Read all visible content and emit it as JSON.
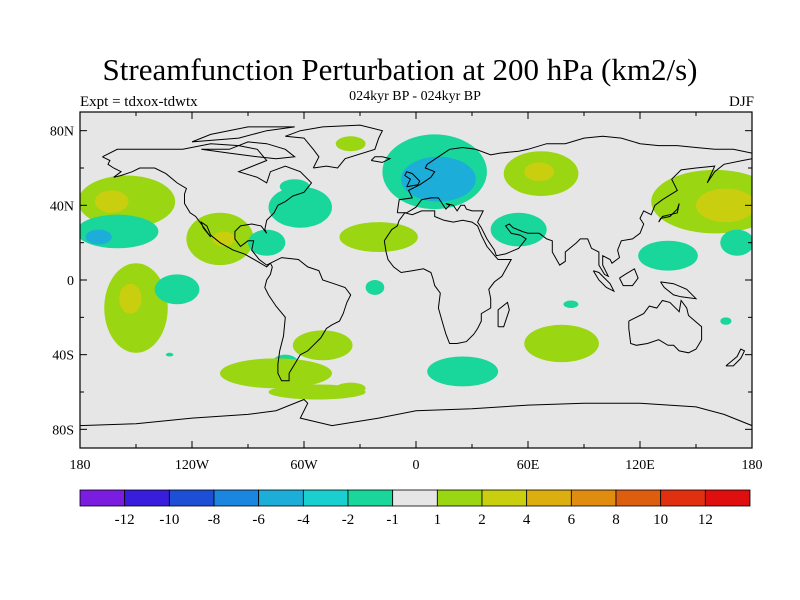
{
  "header": {
    "title": "Streamfunction Perturbation at 200 hPa (km2/s)",
    "subtitle": "024kyr BP - 024kyr BP",
    "left_label": "Expt = tdxox-tdwtx",
    "right_label": "DJF"
  },
  "chart_data": {
    "type": "heatmap",
    "title": "Streamfunction Perturbation at 200 hPa (km2/s)",
    "subtitle": "024kyr BP - 024kyr BP",
    "map_projection": "cylindrical equidistant, global",
    "xlim": [
      -180,
      180
    ],
    "ylim": [
      -90,
      90
    ],
    "x_ticks": [
      "180",
      "120W",
      "60W",
      "0",
      "60E",
      "120E",
      "180"
    ],
    "y_ticks": [
      "80N",
      "40N",
      "0",
      "40S",
      "80S"
    ],
    "background_color": "#e6e6e6",
    "colorbar": {
      "labels": [
        "-12",
        "-10",
        "-8",
        "-6",
        "-4",
        "-2",
        "-1",
        "1",
        "2",
        "4",
        "6",
        "8",
        "10",
        "12"
      ],
      "colors": [
        "#7b1de0",
        "#3a1ddc",
        "#1c4fd6",
        "#1b86e0",
        "#1caed8",
        "#1acfcf",
        "#19d69a",
        "#e6e6e6",
        "#9ad611",
        "#c9cf0f",
        "#dcae0f",
        "#e08c0f",
        "#de5e10",
        "#e0300f",
        "#e00f0f"
      ]
    },
    "blobs": [
      {
        "lon": -155,
        "lat": 42,
        "rlon": 26,
        "rlat": 14,
        "level": "2",
        "color": "#9ad611"
      },
      {
        "lon": -163,
        "lat": 42,
        "rlon": 9,
        "rlat": 6,
        "level": "4",
        "color": "#c9cf0f"
      },
      {
        "lon": -160,
        "lat": 26,
        "rlon": 22,
        "rlat": 9,
        "level": "-2",
        "color": "#19d69a"
      },
      {
        "lon": -170,
        "lat": 23,
        "rlon": 7,
        "rlat": 4,
        "level": "-4",
        "color": "#1caed8"
      },
      {
        "lon": -150,
        "lat": -15,
        "rlon": 17,
        "rlat": 24,
        "level": "2",
        "color": "#9ad611"
      },
      {
        "lon": -153,
        "lat": -10,
        "rlon": 6,
        "rlat": 8,
        "level": "4",
        "color": "#c9cf0f"
      },
      {
        "lon": -128,
        "lat": -5,
        "rlon": 12,
        "rlat": 8,
        "level": "-2",
        "color": "#19d69a"
      },
      {
        "lon": -105,
        "lat": 22,
        "rlon": 18,
        "rlat": 14,
        "level": "2",
        "color": "#9ad611"
      },
      {
        "lon": -103,
        "lat": 22,
        "rlon": 6,
        "rlat": 4,
        "level": "4",
        "color": "#c9cf0f"
      },
      {
        "lon": -80,
        "lat": 20,
        "rlon": 10,
        "rlat": 7,
        "level": "-2",
        "color": "#19d69a"
      },
      {
        "lon": -62,
        "lat": 39,
        "rlon": 17,
        "rlat": 11,
        "level": "-2",
        "color": "#19d69a"
      },
      {
        "lon": -65,
        "lat": 50,
        "rlon": 8,
        "rlat": 4,
        "level": "-2",
        "color": "#19d69a"
      },
      {
        "lon": -20,
        "lat": 23,
        "rlon": 21,
        "rlat": 8,
        "level": "2",
        "color": "#9ad611"
      },
      {
        "lon": -22,
        "lat": -4,
        "rlon": 5,
        "rlat": 4,
        "level": "-2",
        "color": "#19d69a"
      },
      {
        "lon": -50,
        "lat": -35,
        "rlon": 16,
        "rlat": 8,
        "level": "2",
        "color": "#9ad611"
      },
      {
        "lon": -70,
        "lat": -46,
        "rlon": 8,
        "rlat": 6,
        "level": "-2",
        "color": "#19d69a"
      },
      {
        "lon": -75,
        "lat": -50,
        "rlon": 30,
        "rlat": 8,
        "level": "2",
        "color": "#9ad611"
      },
      {
        "lon": -53,
        "lat": -60,
        "rlon": 26,
        "rlat": 4,
        "level": "2",
        "color": "#9ad611"
      },
      {
        "lon": -35,
        "lat": -58,
        "rlon": 8,
        "rlat": 3,
        "level": "2",
        "color": "#9ad611"
      },
      {
        "lon": -132,
        "lat": -40,
        "rlon": 2,
        "rlat": 1,
        "level": "-2",
        "color": "#19d69a"
      },
      {
        "lon": -35,
        "lat": 73,
        "rlon": 8,
        "rlat": 4,
        "level": "2",
        "color": "#9ad611"
      },
      {
        "lon": 10,
        "lat": 58,
        "rlon": 28,
        "rlat": 20,
        "level": "-2",
        "color": "#19d69a"
      },
      {
        "lon": 12,
        "lat": 54,
        "rlon": 20,
        "rlat": 12,
        "level": "-4",
        "color": "#1caed8"
      },
      {
        "lon": 67,
        "lat": 57,
        "rlon": 20,
        "rlat": 12,
        "level": "2",
        "color": "#9ad611"
      },
      {
        "lon": 66,
        "lat": 58,
        "rlon": 8,
        "rlat": 5,
        "level": "4",
        "color": "#c9cf0f"
      },
      {
        "lon": 55,
        "lat": 27,
        "rlon": 15,
        "rlat": 9,
        "level": "-2",
        "color": "#19d69a"
      },
      {
        "lon": 25,
        "lat": -49,
        "rlon": 19,
        "rlat": 8,
        "level": "-2",
        "color": "#19d69a"
      },
      {
        "lon": 78,
        "lat": -34,
        "rlon": 20,
        "rlat": 10,
        "level": "2",
        "color": "#9ad611"
      },
      {
        "lon": 83,
        "lat": -13,
        "rlon": 4,
        "rlat": 2,
        "level": "-2",
        "color": "#19d69a"
      },
      {
        "lon": 135,
        "lat": 13,
        "rlon": 16,
        "rlat": 8,
        "level": "-2",
        "color": "#19d69a"
      },
      {
        "lon": 160,
        "lat": 42,
        "rlon": 34,
        "rlat": 17,
        "level": "2",
        "color": "#9ad611"
      },
      {
        "lon": 166,
        "lat": 40,
        "rlon": 16,
        "rlat": 9,
        "level": "4",
        "color": "#c9cf0f"
      },
      {
        "lon": 172,
        "lat": 20,
        "rlon": 9,
        "rlat": 7,
        "level": "-2",
        "color": "#19d69a"
      },
      {
        "lon": 166,
        "lat": -22,
        "rlon": 3,
        "rlat": 2,
        "level": "-2",
        "color": "#19d69a"
      }
    ]
  }
}
